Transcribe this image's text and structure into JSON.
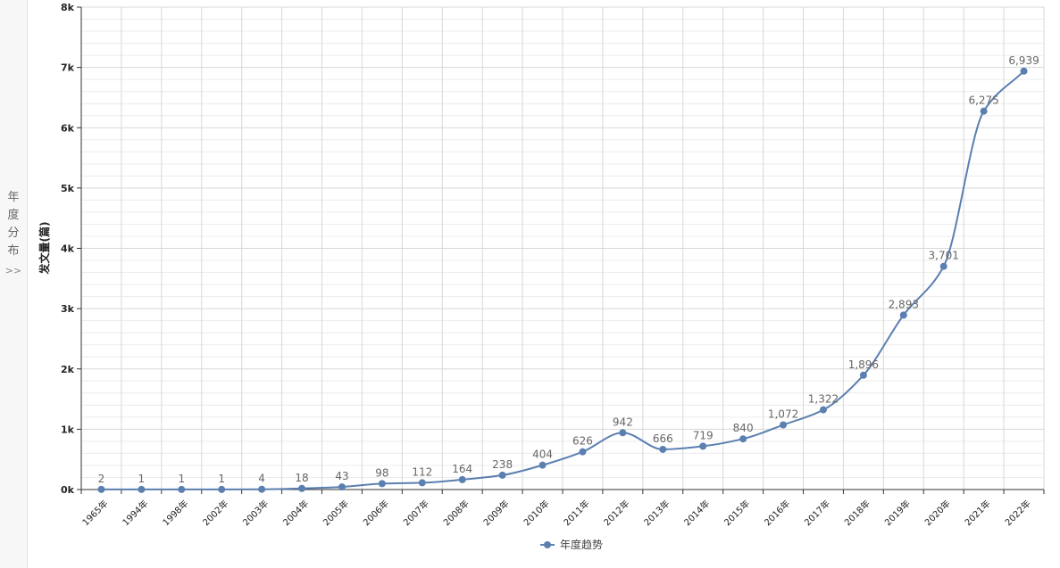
{
  "side_tab": {
    "label_chars": [
      "年",
      "度",
      "分",
      "布"
    ],
    "chevron": ">>"
  },
  "colors": {
    "series": "#5b7fb0",
    "grid_major": "#d8d8d8",
    "grid_minor": "#ececec",
    "axis": "#333333",
    "side_panel_bg": "#f7f7f7"
  },
  "chart_data": {
    "type": "line",
    "title": "",
    "ylabel": "发文量(篇)",
    "xlabel": "",
    "ylim": [
      0,
      8000
    ],
    "y_ticks": [
      0,
      1000,
      2000,
      3000,
      4000,
      5000,
      6000,
      7000,
      8000
    ],
    "y_tick_labels": [
      "0k",
      "1k",
      "2k",
      "3k",
      "4k",
      "5k",
      "6k",
      "7k",
      "8k"
    ],
    "grid": true,
    "legend_position": "bottom-center",
    "categories": [
      "1965年",
      "1994年",
      "1998年",
      "2002年",
      "2003年",
      "2004年",
      "2005年",
      "2006年",
      "2007年",
      "2008年",
      "2009年",
      "2010年",
      "2011年",
      "2012年",
      "2013年",
      "2014年",
      "2015年",
      "2016年",
      "2017年",
      "2018年",
      "2019年",
      "2020年",
      "2021年",
      "2022年"
    ],
    "series": [
      {
        "name": "年度趋势",
        "values": [
          2,
          1,
          1,
          1,
          4,
          18,
          43,
          98,
          112,
          164,
          238,
          404,
          626,
          942,
          666,
          719,
          840,
          1072,
          1322,
          1896,
          2893,
          3701,
          6275,
          6939
        ],
        "value_labels": [
          "2",
          "1",
          "1",
          "1",
          "4",
          "18",
          "43",
          "98",
          "112",
          "164",
          "238",
          "404",
          "626",
          "942",
          "666",
          "719",
          "840",
          "1,072",
          "1,322",
          "1,896",
          "2,893",
          "3,701",
          "6,275",
          "6,939"
        ]
      }
    ]
  }
}
